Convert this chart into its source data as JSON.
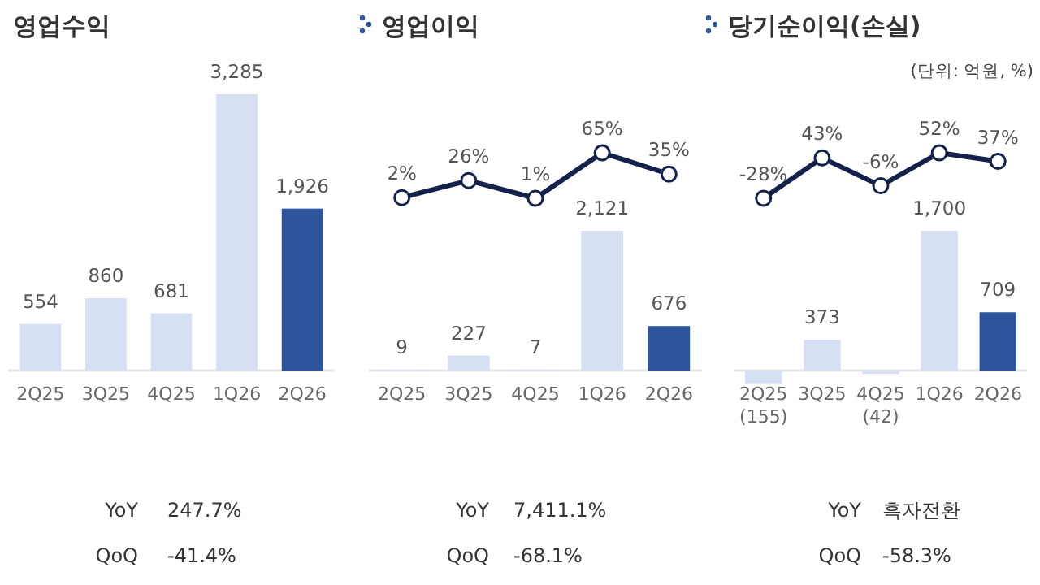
{
  "chart_data": [
    {
      "type": "bar",
      "title": "영업수익",
      "categories": [
        "2Q25",
        "3Q25",
        "4Q25",
        "1Q26",
        "2Q26"
      ],
      "series": [
        {
          "type": "bar",
          "colors": [
            "#d6e0f2",
            "#d6e0f2",
            "#d6e0f2",
            "#d6e0f2",
            "#2e559b"
          ],
          "values": [
            554,
            860,
            681,
            3285,
            1926
          ],
          "value_labels": [
            "554",
            "860",
            "681",
            "3,285",
            "1,926"
          ]
        }
      ],
      "annotations": [
        "YoY",
        "247.7%",
        "QoQ",
        "-41.4%"
      ]
    },
    {
      "type": "line",
      "title": "영업이익",
      "categories": [
        "2Q25",
        "3Q25",
        "4Q25",
        "1Q26",
        "2Q26"
      ],
      "marker": "circle",
      "tick_labels": false,
      "series": [
        {
          "type": "line",
          "color": "#14214a",
          "values": [
            2,
            26,
            1,
            65,
            35
          ],
          "value_labels": [
            "2%",
            "26%",
            "1%",
            "65%",
            "35%"
          ]
        }
      ]
    },
    {
      "type": "bar",
      "categories": [
        "2Q25",
        "3Q25",
        "4Q25",
        "1Q26",
        "2Q26"
      ],
      "series": [
        {
          "type": "bar",
          "colors": [
            "#d6e0f2",
            "#d6e0f2",
            "#d6e0f2",
            "#d6e0f2",
            "#2e559b"
          ],
          "values": [
            9,
            227,
            7,
            2121,
            676
          ],
          "value_labels": [
            "9",
            "227",
            "7",
            "2,121",
            "676"
          ]
        }
      ],
      "annotations": [
        "YoY",
        "7,411.1%",
        "QoQ",
        "-68.1%"
      ]
    },
    {
      "type": "line",
      "title": "당기순이익(손실)",
      "subtitle": "(단위: 억원, %)",
      "categories": [
        "2Q25",
        "3Q25",
        "4Q25",
        "1Q26",
        "2Q26"
      ],
      "marker": "circle",
      "tick_labels": false,
      "series": [
        {
          "type": "line",
          "color": "#14214a",
          "values": [
            -28,
            43,
            -6,
            52,
            37
          ],
          "value_labels": [
            "-28%",
            "43%",
            "-6%",
            "52%",
            "37%"
          ]
        }
      ]
    },
    {
      "type": "bar",
      "categories": [
        "2Q25",
        "3Q25",
        "4Q25",
        "1Q26",
        "2Q26"
      ],
      "series": [
        {
          "type": "bar",
          "colors": [
            "#d6e0f2",
            "#d6e0f2",
            "#d6e0f2",
            "#d6e0f2",
            "#2e559b"
          ],
          "values": [
            -155,
            373,
            -42,
            1700,
            709
          ],
          "value_labels": [
            "(155)",
            "373",
            "(42)",
            "1,700",
            "709"
          ]
        }
      ],
      "annotations": [
        "YoY",
        "흑자전환",
        "QoQ",
        "-58.3%"
      ]
    }
  ]
}
